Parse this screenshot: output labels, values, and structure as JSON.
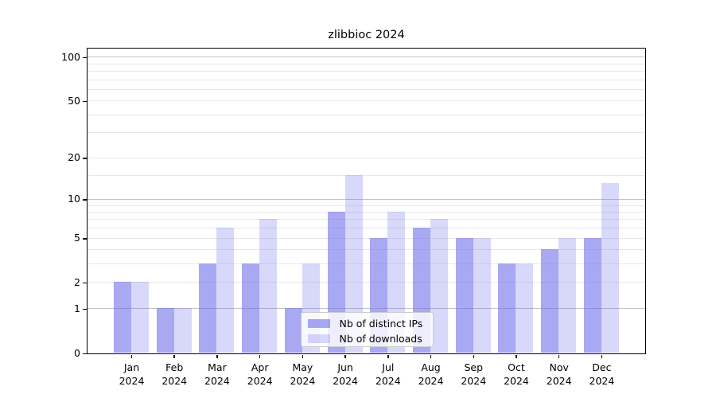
{
  "chart_data": {
    "type": "bar",
    "title": "zlibbioc 2024",
    "categories": [
      "Jan 2024",
      "Feb 2024",
      "Mar 2024",
      "Apr 2024",
      "May 2024",
      "Jun 2024",
      "Jul 2024",
      "Aug 2024",
      "Sep 2024",
      "Oct 2024",
      "Nov 2024",
      "Dec 2024"
    ],
    "series": [
      {
        "name": "Nb of distinct IPs",
        "color": "rgba(110,110,235,0.6)",
        "values": [
          2,
          1,
          3,
          3,
          1,
          8,
          5,
          6,
          5,
          3,
          4,
          5
        ]
      },
      {
        "name": "Nb of downloads",
        "color": "rgba(110,110,235,0.27)",
        "values": [
          2,
          1,
          6,
          7,
          3,
          15,
          8,
          7,
          5,
          3,
          5,
          13
        ]
      }
    ],
    "yscale": "log1p",
    "ylim": [
      0,
      114
    ],
    "yticks": [
      0,
      1,
      2,
      5,
      10,
      20,
      50,
      100
    ],
    "grid": {
      "major_lines": [
        1,
        10,
        100
      ],
      "minor_lines": [
        2,
        3,
        4,
        5,
        6,
        7,
        8,
        9,
        15,
        20,
        30,
        40,
        50,
        60,
        70,
        80,
        90
      ]
    },
    "legend_position": "inside-bottom-center",
    "xlabel": "",
    "ylabel": ""
  },
  "colors": {
    "grid_major": "#c3c3c3",
    "grid_minor": "#e8e8e8",
    "axis": "#000000",
    "background": "#ffffff",
    "legend_border": "#cccccc",
    "legend_background": "rgba(255,255,255,0.8)"
  }
}
